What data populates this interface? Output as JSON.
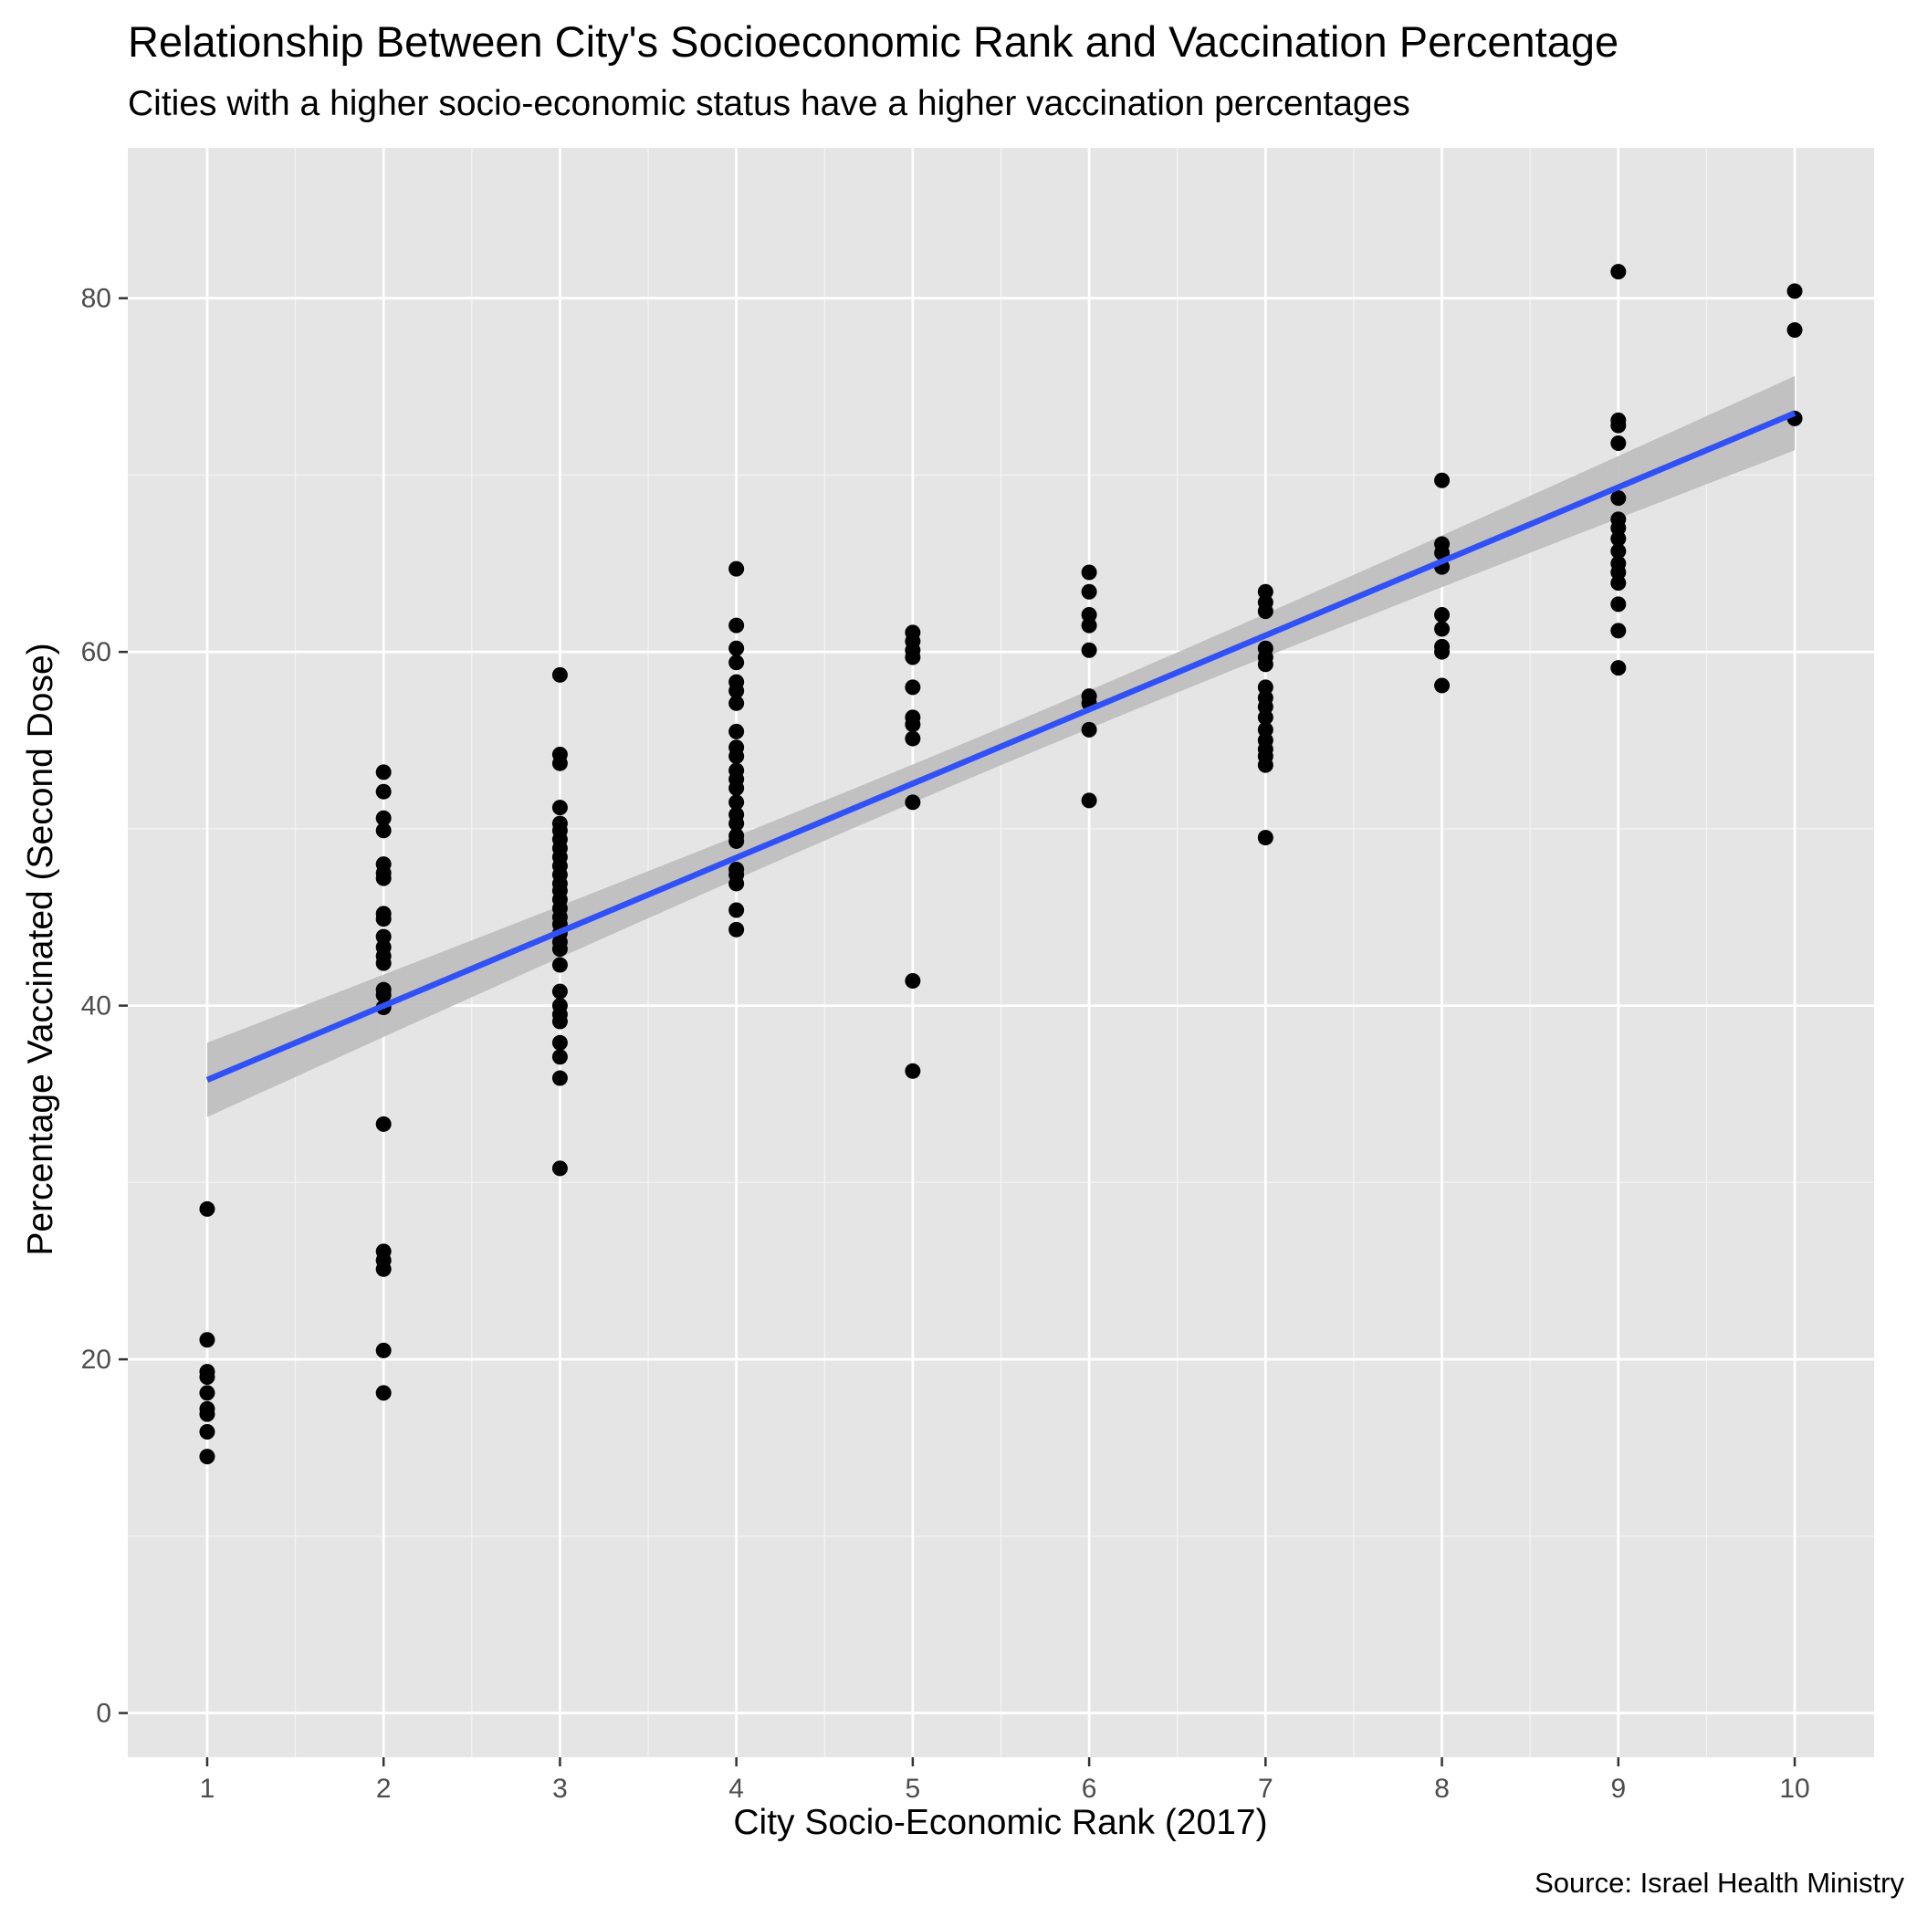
{
  "chart_data": {
    "type": "scatter",
    "title": "Relationship Between City's Socioeconomic Rank and Vaccination Percentage",
    "subtitle": "Cities with a higher socio-economic status have a higher vaccination percentages",
    "caption": "Source: Israel Health Ministry",
    "xlabel": "City Socio-Economic Rank (2017)",
    "ylabel": "Percentage Vaccinated (Second Dose)",
    "xlim": [
      0.55,
      10.45
    ],
    "ylim": [
      -2.5,
      88.5
    ],
    "xticks": [
      1,
      2,
      3,
      4,
      5,
      6,
      7,
      8,
      9,
      10
    ],
    "xtick_labels": [
      "1",
      "2",
      "3",
      "4",
      "5",
      "6",
      "7",
      "8",
      "9",
      "10"
    ],
    "yticks": [
      0,
      20,
      40,
      60,
      80
    ],
    "ytick_labels": [
      "0",
      "20",
      "40",
      "60",
      "80"
    ],
    "grid": true,
    "background": "#e5e5e5",
    "point_color": "#000000",
    "smooth_color": "#3050f8",
    "band_color": "#bdbdbd",
    "points": [
      {
        "x": 1,
        "values": [
          28.5,
          21.1,
          19.3,
          19.0,
          18.1,
          17.2,
          16.9,
          15.9,
          14.5
        ]
      },
      {
        "x": 2,
        "values": [
          53.2,
          52.1,
          50.6,
          49.9,
          48.0,
          47.5,
          47.2,
          45.2,
          44.9,
          43.9,
          43.3,
          42.8,
          42.4,
          40.9,
          40.6,
          39.9,
          33.3,
          26.1,
          25.6,
          25.1,
          20.5,
          18.1
        ]
      },
      {
        "x": 3,
        "values": [
          58.7,
          54.2,
          53.7,
          51.2,
          50.3,
          49.9,
          49.4,
          48.9,
          48.4,
          47.9,
          47.4,
          46.9,
          46.5,
          46.0,
          45.5,
          45.0,
          44.6,
          44.1,
          43.6,
          43.2,
          42.3,
          40.8,
          40.0,
          39.5,
          39.1,
          37.9,
          37.1,
          35.9,
          30.8
        ]
      },
      {
        "x": 4,
        "values": [
          64.7,
          61.5,
          60.2,
          59.4,
          58.3,
          57.8,
          57.1,
          55.5,
          54.6,
          54.1,
          53.3,
          52.8,
          52.3,
          51.5,
          50.8,
          50.3,
          49.6,
          49.3,
          47.7,
          47.4,
          46.9,
          45.4,
          44.3
        ]
      },
      {
        "x": 5,
        "values": [
          61.1,
          60.6,
          60.1,
          59.7,
          58.0,
          56.3,
          55.9,
          55.1,
          51.5,
          41.4,
          36.3
        ]
      },
      {
        "x": 6,
        "values": [
          64.5,
          63.4,
          62.1,
          61.5,
          60.1,
          57.5,
          57.1,
          55.6,
          51.6
        ]
      },
      {
        "x": 7,
        "values": [
          63.4,
          62.8,
          62.3,
          60.2,
          59.7,
          59.3,
          58.0,
          57.4,
          56.9,
          56.3,
          55.6,
          55.0,
          54.5,
          54.1,
          53.6,
          49.5
        ]
      },
      {
        "x": 8,
        "values": [
          69.7,
          66.1,
          65.6,
          64.8,
          62.1,
          61.3,
          60.3,
          60.0,
          58.1
        ]
      },
      {
        "x": 9,
        "values": [
          81.5,
          73.1,
          72.8,
          71.8,
          68.7,
          67.5,
          67.0,
          66.4,
          65.7,
          65.0,
          64.5,
          63.9,
          62.7,
          61.2,
          59.1
        ]
      },
      {
        "x": 10,
        "values": [
          80.4,
          78.2,
          73.2
        ]
      }
    ],
    "smooth": {
      "method": "linear",
      "x": [
        1,
        10
      ],
      "y": [
        35.8,
        73.5
      ],
      "lower": [
        33.7,
        70.8
      ],
      "upper": [
        37.9,
        76.1
      ],
      "band_curve": 0.9
    }
  }
}
